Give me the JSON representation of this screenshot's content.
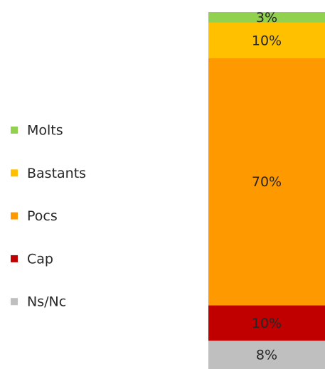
{
  "chart_data": {
    "type": "bar",
    "stacked": true,
    "categories": [
      null
    ],
    "series": [
      {
        "name": "Molts",
        "color": "#92d050",
        "values": [
          3
        ],
        "value_labels": [
          "3%"
        ]
      },
      {
        "name": "Bastants",
        "color": "#ffc000",
        "values": [
          10
        ],
        "value_labels": [
          "10%"
        ]
      },
      {
        "name": "Pocs",
        "color": "#ff9900",
        "values": [
          70
        ],
        "value_labels": [
          "70%"
        ]
      },
      {
        "name": "Cap",
        "color": "#c00000",
        "values": [
          10
        ],
        "value_labels": [
          "10%"
        ]
      },
      {
        "name": "Ns/Nc",
        "color": "#bfbfbf",
        "values": [
          8
        ],
        "value_labels": [
          "8%"
        ]
      }
    ],
    "legend": "left"
  }
}
